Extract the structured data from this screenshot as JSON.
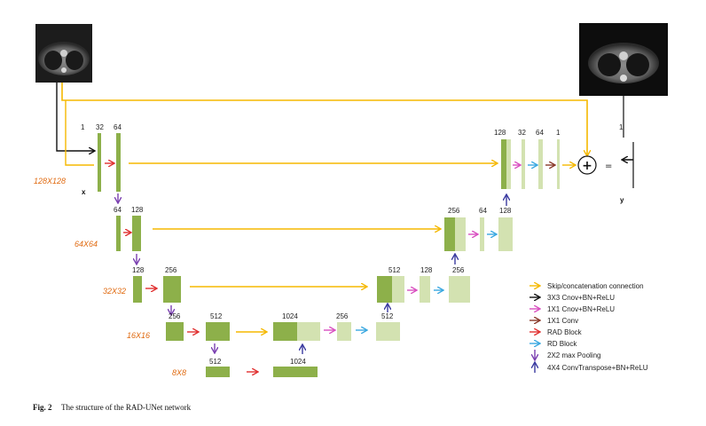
{
  "figure": {
    "caption_label": "Fig. 2",
    "caption_text": "The structure of the RAD-UNet network",
    "input_label": "x",
    "output_label": "y",
    "plus_symbol": "+",
    "equals_symbol": "="
  },
  "resolutions": [
    "128X128",
    "64X64",
    "32X32",
    "16X16",
    "8X8"
  ],
  "encoder": {
    "l1": [
      "1",
      "32",
      "64"
    ],
    "l2": [
      "64",
      "128"
    ],
    "l3": [
      "128",
      "256"
    ],
    "l4": [
      "256",
      "512"
    ],
    "l5": [
      "512",
      "1024"
    ]
  },
  "decoder": {
    "l4": [
      "1024",
      "256",
      "512"
    ],
    "l3": [
      "512",
      "128",
      "256"
    ],
    "l2": [
      "256",
      "64",
      "128"
    ],
    "l1": [
      "128",
      "32",
      "64",
      "1"
    ],
    "out": "1"
  },
  "legend": [
    {
      "label": "Skip/concatenation connection",
      "color": "#f5b800",
      "icon": "right-arrow-icon"
    },
    {
      "label": "3X3  Cnov+BN+ReLU",
      "color": "#111111",
      "icon": "right-arrow-icon"
    },
    {
      "label": "1X1  Cnov+BN+ReLU",
      "color": "#d94fc0",
      "icon": "right-arrow-icon"
    },
    {
      "label": "1X1  Conv",
      "color": "#8a3a2a",
      "icon": "right-arrow-icon"
    },
    {
      "label": "RAD  Block",
      "color": "#e03030",
      "icon": "right-arrow-icon"
    },
    {
      "label": "RD  Block",
      "color": "#3aa8e0",
      "icon": "right-arrow-icon"
    },
    {
      "label": "2X2  max Pooling",
      "color": "#7a3fb0",
      "icon": "down-arrow-icon"
    },
    {
      "label": "4X4 ConvTranspose+BN+ReLU",
      "color": "#3a3aa0",
      "icon": "up-arrow-icon"
    }
  ]
}
